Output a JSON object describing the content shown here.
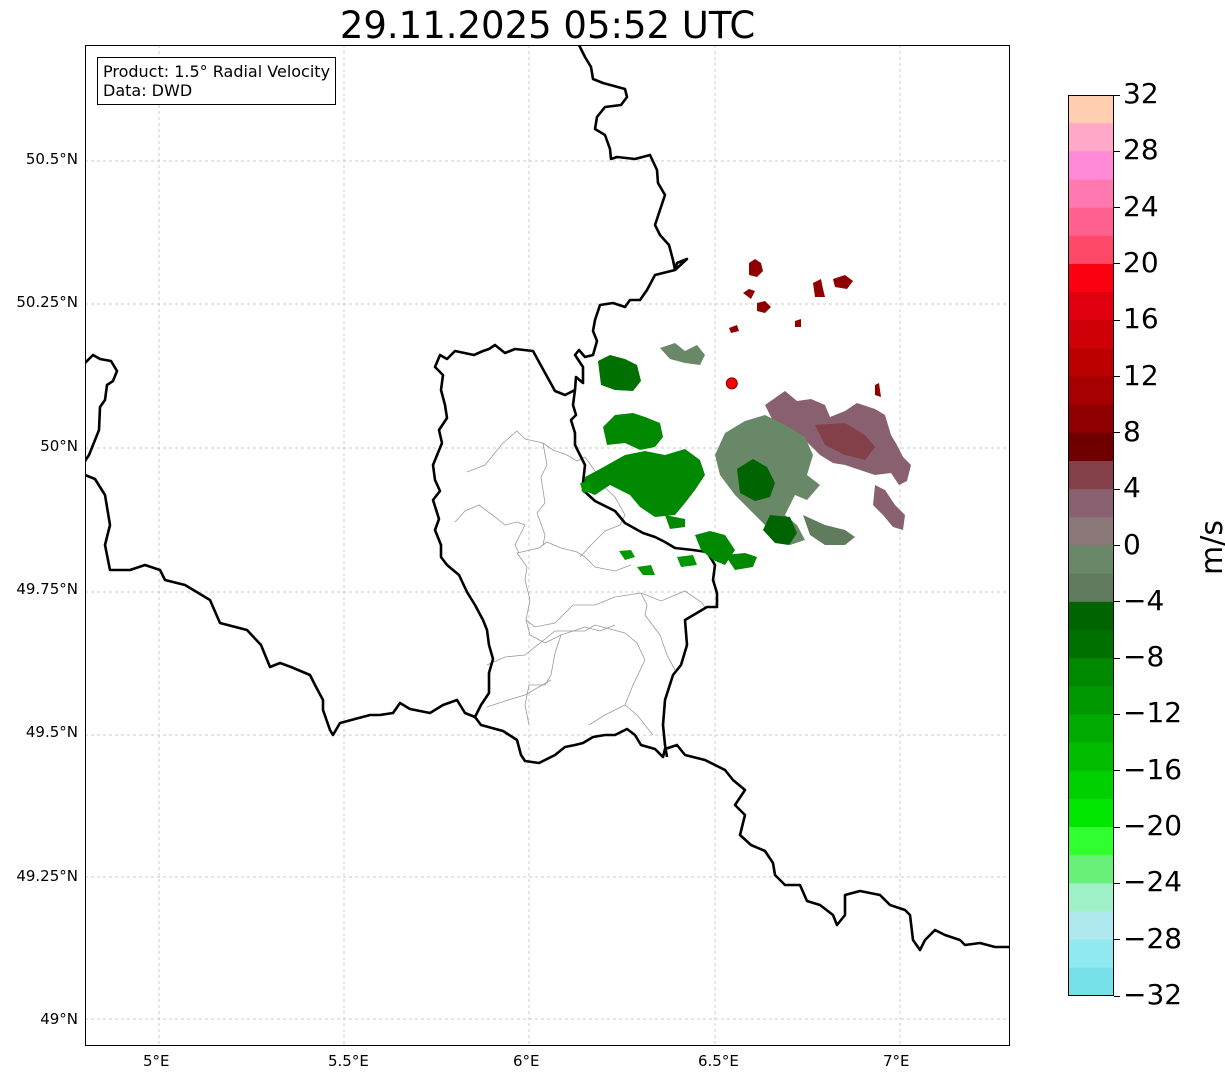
{
  "title": "29.11.2025 05:52 UTC",
  "infobox": {
    "product": "Product: 1.5° Radial Velocity",
    "data": "Data: DWD"
  },
  "colorbar": {
    "unit": "m/s",
    "min": -32,
    "max": 32,
    "tick_labels": [
      "32",
      "28",
      "24",
      "20",
      "16",
      "12",
      "8",
      "4",
      "0",
      "−4",
      "−8",
      "−12",
      "−16",
      "−20",
      "−24",
      "−28",
      "−32"
    ],
    "tick_values": [
      32,
      28,
      24,
      20,
      16,
      12,
      8,
      4,
      0,
      -4,
      -8,
      -12,
      -16,
      -20,
      -24,
      -28,
      -32
    ],
    "colors_top_to_bottom": [
      "#ffcfb0",
      "#ffa8c8",
      "#ff8ad8",
      "#ff78b0",
      "#ff6090",
      "#ff4868",
      "#fa0010",
      "#e00010",
      "#d00008",
      "#bb0000",
      "#a60000",
      "#8f0000",
      "#6f0000",
      "#844048",
      "#886070",
      "#8a7878",
      "#688868",
      "#607b5e",
      "#006400",
      "#007000",
      "#008800",
      "#009800",
      "#00aa00",
      "#00bd00",
      "#00d000",
      "#00e600",
      "#30ff30",
      "#68f078",
      "#a0f0c8",
      "#b0e8f0",
      "#90e8f0",
      "#78e0e8"
    ]
  },
  "axes": {
    "y_ticks": [
      {
        "label": "50.5°N",
        "value": 50.5
      },
      {
        "label": "50.25°N",
        "value": 50.25
      },
      {
        "label": "50°N",
        "value": 50.0
      },
      {
        "label": "49.75°N",
        "value": 49.75
      },
      {
        "label": "49.5°N",
        "value": 49.5
      },
      {
        "label": "49.25°N",
        "value": 49.25
      },
      {
        "label": "49°N",
        "value": 49.0
      }
    ],
    "x_ticks": [
      {
        "label": "5°E",
        "value": 5.0
      },
      {
        "label": "5.5°E",
        "value": 5.5
      },
      {
        "label": "6°E",
        "value": 6.0
      },
      {
        "label": "6.5°E",
        "value": 6.5
      },
      {
        "label": "7°E",
        "value": 7.0
      }
    ],
    "lon_range": [
      4.8,
      7.3
    ],
    "lat_range": [
      48.955,
      50.7
    ]
  },
  "radar_site": {
    "lon": 6.548,
    "lat": 50.11,
    "color": "#ff0000"
  }
}
